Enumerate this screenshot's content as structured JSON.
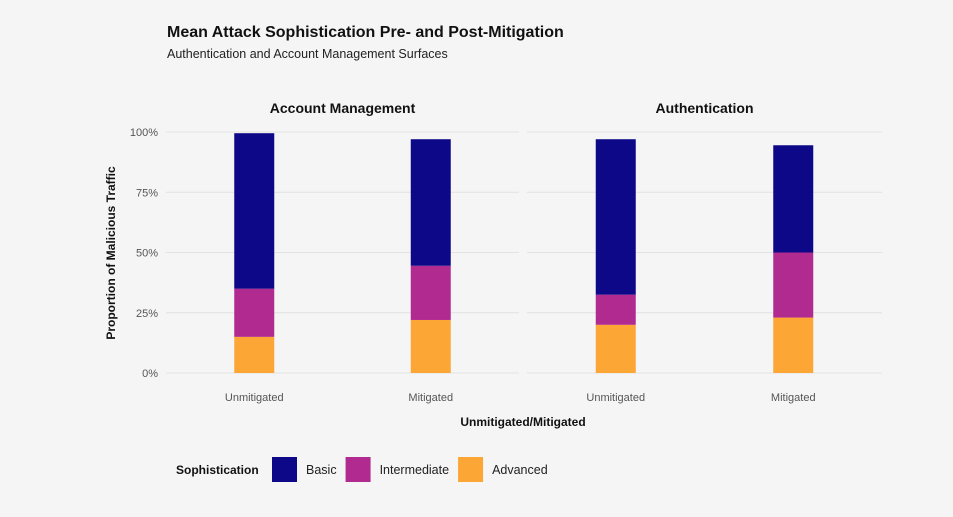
{
  "chart_data": {
    "type": "bar",
    "stacked": true,
    "title": "Mean Attack Sophistication Pre- and Post-Mitigation",
    "subtitle": "Authentication and Account Management Surfaces",
    "xlabel": "Unmitigated/Mitigated",
    "ylabel": "Proportion of Malicious Traffic",
    "ylim": [
      0,
      100
    ],
    "yticks": [
      "0%",
      "25%",
      "50%",
      "75%",
      "100%"
    ],
    "categories": [
      "Unmitigated",
      "Mitigated"
    ],
    "legend": {
      "title": "Sophistication",
      "placement": "bottom-left",
      "items": [
        {
          "name": "Basic",
          "color": "#0d0887"
        },
        {
          "name": "Intermediate",
          "color": "#b12a90"
        },
        {
          "name": "Advanced",
          "color": "#fca636"
        }
      ]
    },
    "panels": [
      {
        "title": "Account Management",
        "series": [
          {
            "name": "Advanced",
            "values": [
              15,
              22
            ]
          },
          {
            "name": "Intermediate",
            "values": [
              20,
              22.5
            ]
          },
          {
            "name": "Basic",
            "values": [
              64.5,
              52.5
            ]
          }
        ]
      },
      {
        "title": "Authentication",
        "series": [
          {
            "name": "Advanced",
            "values": [
              20,
              23
            ]
          },
          {
            "name": "Intermediate",
            "values": [
              12.5,
              27
            ]
          },
          {
            "name": "Basic",
            "values": [
              64.5,
              44.5
            ]
          }
        ]
      }
    ],
    "grid": true
  }
}
